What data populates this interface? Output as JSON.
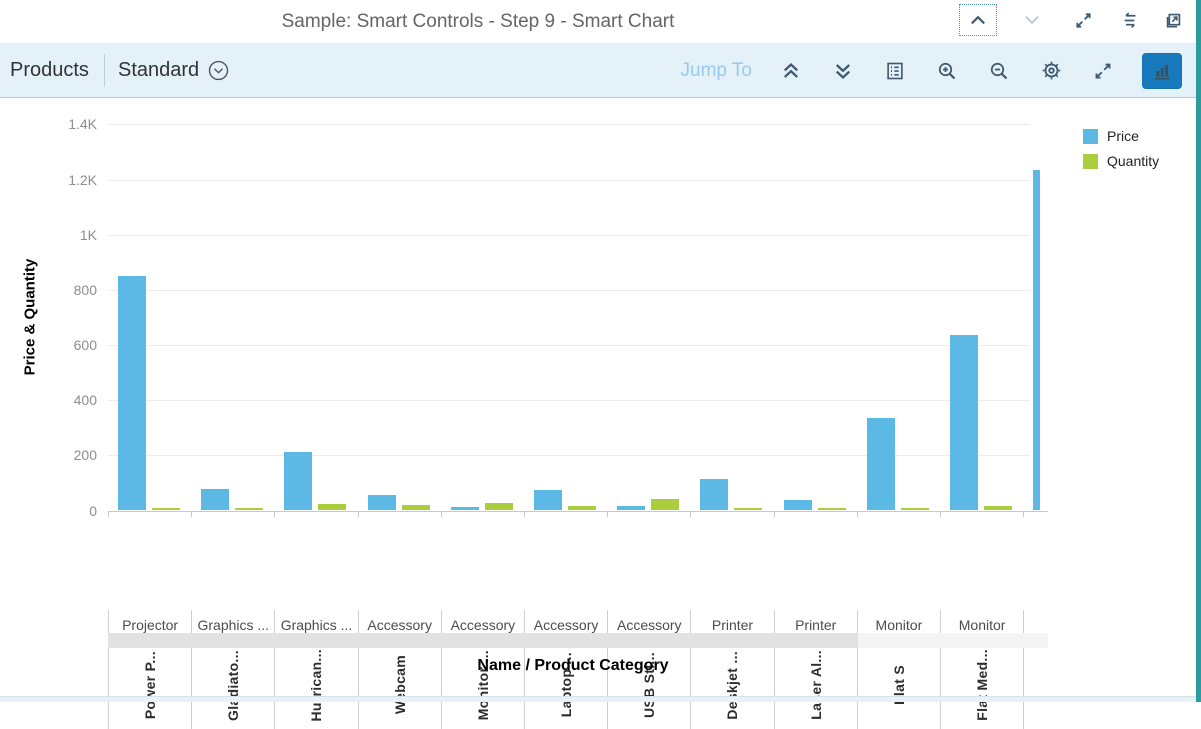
{
  "header": {
    "title": "Sample: Smart Controls - Step 9 - Smart Chart",
    "icons": [
      "previous-sample-icon",
      "next-sample-icon",
      "expand-icon",
      "show-code-icon",
      "open-in-new-window-icon"
    ]
  },
  "toolbar": {
    "products_label": "Products",
    "variant_label": "Standard",
    "jump_to_label": "Jump To",
    "icons": [
      "collapse-all-icon",
      "expand-all-icon",
      "legend-icon",
      "zoom-in-icon",
      "zoom-out-icon",
      "settings-icon",
      "fullscreen-icon",
      "chart-type-icon"
    ],
    "selected_chart_type": "bar",
    "accent_color": "#187abc"
  },
  "legend": {
    "items": [
      {
        "label": "Price",
        "color": "#5cb9e6"
      },
      {
        "label": "Quantity",
        "color": "#abce3e"
      }
    ]
  },
  "chart_data": {
    "type": "bar",
    "title": "",
    "xlabel": "Name / Product Category",
    "ylabel": "Price & Quantity",
    "ylim": [
      0,
      1400
    ],
    "ytick_step": 200,
    "yticks": [
      "0",
      "200",
      "400",
      "600",
      "800",
      "1K",
      "1.2K",
      "1.4K"
    ],
    "grid": true,
    "legend_position": "top-right",
    "categories": [
      {
        "name": "Power P...",
        "category": "Projector"
      },
      {
        "name": "Gladiato...",
        "category": "Graphics ..."
      },
      {
        "name": "Hurrican...",
        "category": "Graphics ..."
      },
      {
        "name": "Webcam",
        "category": "Accessory"
      },
      {
        "name": "Monitor ...",
        "category": "Accessory"
      },
      {
        "name": "Laptop ...",
        "category": "Accessory"
      },
      {
        "name": "USB Sti...",
        "category": "Accessory"
      },
      {
        "name": "Deskjet ...",
        "category": "Printer"
      },
      {
        "name": "Laser Al...",
        "category": "Printer"
      },
      {
        "name": "Flat S",
        "category": "Monitor"
      },
      {
        "name": "Flat Med...",
        "category": "Monitor"
      }
    ],
    "series": [
      {
        "name": "Price",
        "color": "#5cb9e6",
        "values": [
          850,
          78,
          212,
          55,
          14,
          76,
          16,
          114,
          37,
          334,
          636
        ]
      },
      {
        "name": "Quantity",
        "color": "#abce3e",
        "values": [
          9,
          10,
          22,
          20,
          27,
          15,
          42,
          8,
          9,
          8,
          15
        ]
      }
    ],
    "clipped_extra_bar": {
      "series": "Price",
      "value": 1235,
      "note": "12th column cut off at right edge, labels not visible"
    }
  }
}
